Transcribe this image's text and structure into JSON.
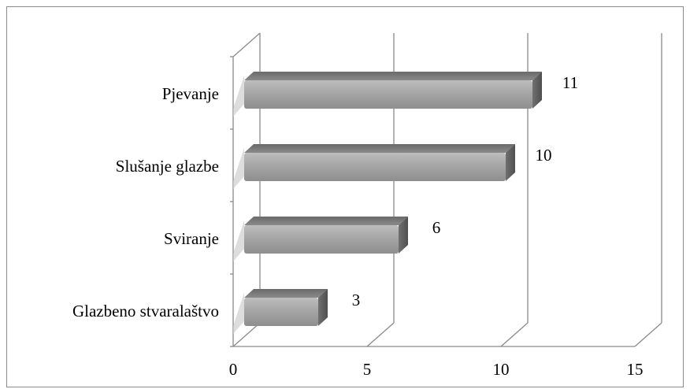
{
  "chart_data": {
    "type": "bar",
    "orientation": "horizontal",
    "style": "3d-clustered",
    "categories": [
      "Glazbeno stvaralaštvo",
      "Sviranje",
      "Slušanje glazbe",
      "Pjevanje"
    ],
    "values": [
      3,
      6,
      10,
      11
    ],
    "xlim": [
      0,
      15
    ],
    "x_ticks": [
      0,
      5,
      10,
      15
    ],
    "grid": true,
    "legend": "none",
    "bar_color": "#a3a3a3",
    "axis_color": "#8a8a8a"
  }
}
